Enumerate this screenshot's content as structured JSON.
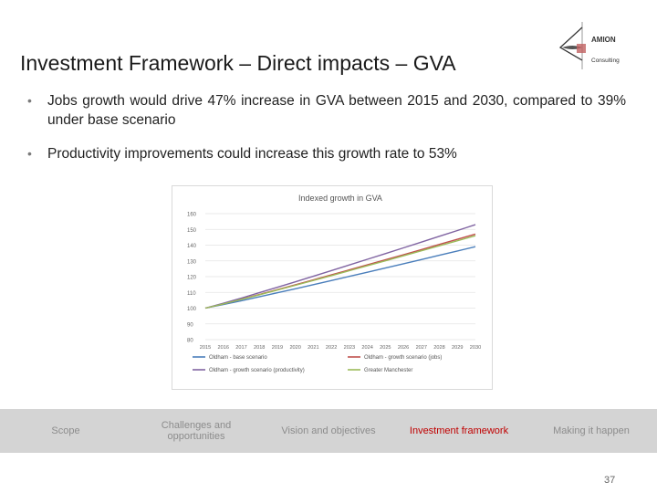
{
  "slide": {
    "title": "Investment Framework – Direct impacts – GVA",
    "logo": {
      "name": "AMION",
      "sub": "Consulting"
    },
    "bullets": [
      "Jobs growth would drive 47% increase in GVA between 2015 and 2030, compared to 39% under base scenario",
      "Productivity improvements could increase this growth rate to 53%"
    ],
    "page_number": "37"
  },
  "nav": {
    "items": [
      {
        "label": "Scope",
        "active": false
      },
      {
        "label": "Challenges and opportunities",
        "active": false
      },
      {
        "label": "Vision and objectives",
        "active": false
      },
      {
        "label": "Investment framework",
        "active": true
      },
      {
        "label": "Making it happen",
        "active": false
      }
    ]
  },
  "colors": {
    "base": "#4a7ebb",
    "jobs": "#c0504d",
    "productivity": "#8064a2",
    "gm": "#9bbb59",
    "active_nav": "#c00000"
  },
  "chart_data": {
    "type": "line",
    "title": "Indexed growth in GVA",
    "x": [
      "2015",
      "2016",
      "2017",
      "2018",
      "2019",
      "2020",
      "2021",
      "2022",
      "2023",
      "2024",
      "2025",
      "2026",
      "2027",
      "2028",
      "2029",
      "2030"
    ],
    "ylim": [
      80,
      160
    ],
    "yticks": [
      80,
      90,
      100,
      110,
      120,
      130,
      140,
      150,
      160
    ],
    "series": [
      {
        "name": "Oldham - base scenario",
        "color": "#4a7ebb",
        "start": 100,
        "end": 139
      },
      {
        "name": "Oldham - growth scenario (jobs)",
        "color": "#c0504d",
        "start": 100,
        "end": 147
      },
      {
        "name": "Oldham - growth scenario (productivity)",
        "color": "#8064a2",
        "start": 100,
        "end": 153
      },
      {
        "name": "Greater Manchester",
        "color": "#9bbb59",
        "start": 100,
        "end": 146
      }
    ]
  }
}
